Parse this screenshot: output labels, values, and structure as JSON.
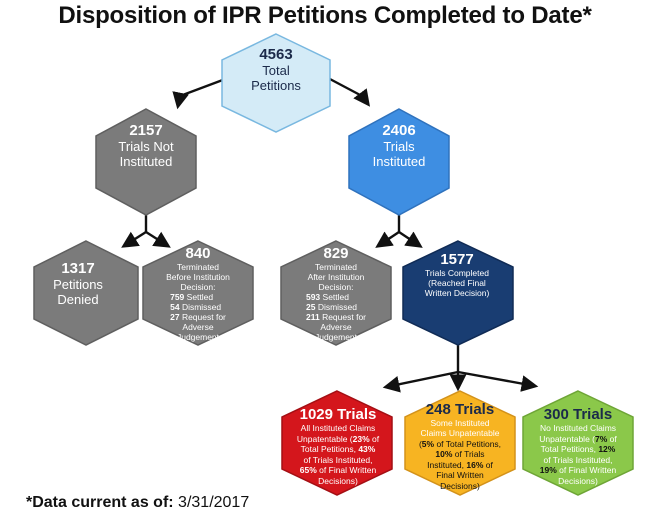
{
  "title": "Disposition of IPR Petitions Completed to Date*",
  "footnote": {
    "label": "*Data current as of:",
    "date": "3/31/2017"
  },
  "colors": {
    "root_fill": "#d4ebf7",
    "root_stroke": "#79b8e0",
    "gray_fill": "#7b7b7b",
    "gray_stroke": "#5f5f5f",
    "blue_fill": "#3e8ee2",
    "blue_stroke": "#2f72bd",
    "navy_fill": "#193d72",
    "navy_stroke": "#102b55",
    "red_fill": "#d4161c",
    "red_stroke": "#a40f14",
    "orange_fill": "#f7b422",
    "orange_stroke": "#d3921a",
    "green_fill": "#8bc84a",
    "green_stroke": "#6ea536",
    "arrow": "#111111"
  },
  "nodes": {
    "root": {
      "number": "4563",
      "label1": "Total",
      "label2": "Petitions"
    },
    "not_instituted": {
      "number": "2157",
      "label1": "Trials Not",
      "label2": "Instituted"
    },
    "instituted": {
      "number": "2406",
      "label1": "Trials",
      "label2": "Instituted"
    },
    "denied": {
      "number": "1317",
      "label1": "Petitions",
      "label2": "Denied"
    },
    "terminated_before": {
      "number": "840",
      "desc1": "Terminated",
      "desc2": "Before Institution",
      "desc3": "Decision:",
      "items": [
        {
          "count": "759",
          "text": "Settled"
        },
        {
          "count": "54",
          "text": "Dismissed"
        },
        {
          "count": "27",
          "text": "Request for"
        }
      ],
      "cont1": "Adverse",
      "cont2": "Judgement"
    },
    "terminated_after": {
      "number": "829",
      "desc1": "Terminated",
      "desc2": "After Institution",
      "desc3": "Decision:",
      "items": [
        {
          "count": "593",
          "text": "Settled"
        },
        {
          "count": "25",
          "text": "Dismissed"
        },
        {
          "count": "211",
          "text": "Request for"
        }
      ],
      "cont1": "Adverse",
      "cont2": "Judgement"
    },
    "completed": {
      "number": "1577",
      "desc1": "Trials Completed",
      "desc2": "(Reached Final",
      "desc3": "Written Decision)"
    },
    "all_unpatentable": {
      "heading": "1029 Trials",
      "line1": "All Instituted Claims",
      "line2a": "Unpatentable (",
      "line2b": "23%",
      "line2c": " of",
      "line3a": "Total Petitions, ",
      "line3b": "43%",
      "line4": "of Trials Instituted,",
      "line5a": "65%",
      "line5b": " of Final Written",
      "line6": "Decisions)"
    },
    "some_unpatentable": {
      "heading": "248 Trials",
      "line1": "Some Instituted",
      "line2": "Claims Unpatentable",
      "line3a": "(",
      "line3b": "5%",
      "line3c": " of Total Petitions,",
      "line4a": "10%",
      "line4b": " of Trials",
      "line5a": "Instituted, ",
      "line5b": "16%",
      "line5c": " of",
      "line6": "Final Written",
      "line7": "Decisions)"
    },
    "none_unpatentable": {
      "heading": "300 Trials",
      "line1": "No Instituted Claims",
      "line2a": "Unpatentable (",
      "line2b": "7%",
      "line2c": " of",
      "line3a": "Total Petitions, ",
      "line3b": "12%",
      "line4": "of Trials Instituted,",
      "line5a": "19%",
      "line5b": " of Final Written",
      "line6": "Decisions)"
    }
  }
}
